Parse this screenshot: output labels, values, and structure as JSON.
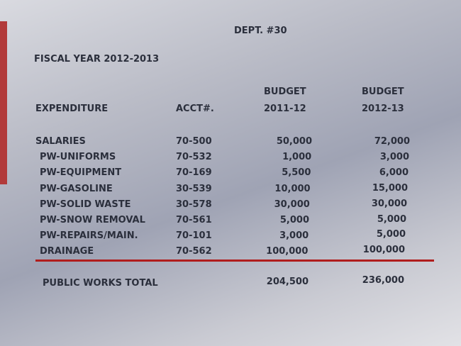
{
  "header": {
    "dept": "DEPT. #30",
    "fiscal_year": "FISCAL YEAR 2012-2013"
  },
  "table": {
    "columns": {
      "expenditure": "EXPENDITURE",
      "acct": "ACCT#.",
      "budget1": [
        "BUDGET",
        "2011-12"
      ],
      "budget2": [
        "BUDGET",
        "2012-13"
      ]
    },
    "rows": [
      [
        "SALARIES",
        "70-500",
        "50,000",
        "72,000"
      ],
      [
        "PW-UNIFORMS",
        "70-532",
        "1,000",
        "3,000"
      ],
      [
        "PW-EQUIPMENT",
        "70-169",
        "5,500",
        "6,000"
      ],
      [
        "PW-GASOLINE",
        "30-539",
        "10,000",
        "15,000"
      ],
      [
        "PW-SOLID WASTE",
        "30-578",
        "30,000",
        "30,000"
      ],
      [
        "PW-SNOW REMOVAL",
        "70-561",
        "5,000",
        "5,000"
      ],
      [
        "PW-REPAIRS/MAIN.",
        "70-101",
        "3,000",
        "5,000"
      ],
      [
        "DRAINAGE",
        "70-562",
        "100,000",
        "100,000"
      ]
    ],
    "total": [
      "PUBLIC WORKS TOTAL",
      "204,500",
      "236,000"
    ]
  }
}
